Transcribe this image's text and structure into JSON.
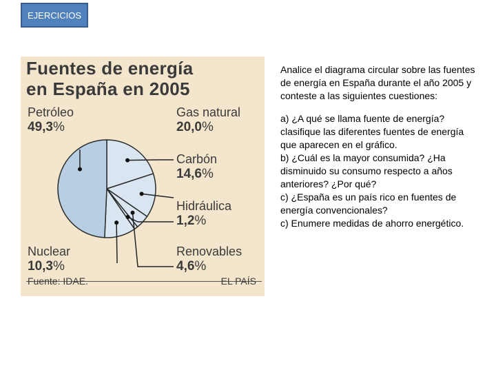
{
  "tab": {
    "label": "EJERCICIOS"
  },
  "chart_data": {
    "type": "pie",
    "title_line1": "Fuentes de energía",
    "title_line2": "en España en 2005",
    "slices": [
      {
        "name": "Petróleo",
        "value": 49.3,
        "value_label": "49,3",
        "color": "#b8cfe3"
      },
      {
        "name": "Gas natural",
        "value": 20.0,
        "value_label": "20,0",
        "color": "#d9e5f0"
      },
      {
        "name": "Carbón",
        "value": 14.6,
        "value_label": "14,6",
        "color": "#d9e5f0"
      },
      {
        "name": "Hidráulica",
        "value": 1.2,
        "value_label": "1,2",
        "color": "#d9e5f0"
      },
      {
        "name": "Renovables",
        "value": 4.6,
        "value_label": "4,6",
        "color": "#d9e5f0"
      },
      {
        "name": "Nuclear",
        "value": 10.3,
        "value_label": "10,3",
        "color": "#d9e5f0"
      }
    ],
    "unit": "%",
    "source": "Fuente: IDAE.",
    "publisher": "EL PAÍS"
  },
  "text": {
    "intro": "Analice el diagrama circular sobre las fuentes de energía en España durante el año 2005 y conteste a las siguientes cuestiones:",
    "lines": [
      "a) ¿A qué se llama fuente de energía? clasifique las diferentes fuentes de energía que aparecen en el gráfico.",
      "b) ¿Cuál es la mayor consumida? ¿Ha disminuido su consumo respecto a años anteriores? ¿Por qué?",
      "c) ¿España es un país rico en fuentes de",
      "energía convencionales?",
      "c) Enumere medidas de ahorro energético."
    ]
  }
}
